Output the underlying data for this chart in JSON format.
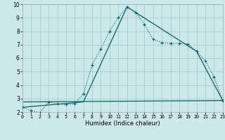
{
  "xlabel": "Humidex (Indice chaleur)",
  "background_color": "#cce8e8",
  "grid_color": "#aacccc",
  "line_color": "#006666",
  "xlim": [
    0,
    23
  ],
  "ylim": [
    2,
    10
  ],
  "xtick_vals": [
    0,
    1,
    2,
    3,
    4,
    5,
    6,
    7,
    8,
    9,
    10,
    11,
    12,
    13,
    14,
    15,
    16,
    17,
    18,
    19,
    20,
    21,
    22,
    23
  ],
  "ytick_vals": [
    2,
    3,
    4,
    5,
    6,
    7,
    8,
    9,
    10
  ],
  "series1_x": [
    0,
    1,
    2,
    3,
    4,
    5,
    6,
    7,
    8,
    9,
    10,
    11,
    12,
    13,
    14,
    15,
    16,
    17,
    18,
    19,
    20,
    21,
    22,
    23
  ],
  "series1_y": [
    2.35,
    2.1,
    1.95,
    2.75,
    2.6,
    2.55,
    2.6,
    3.35,
    5.5,
    6.7,
    8.0,
    9.0,
    9.8,
    9.4,
    8.5,
    7.4,
    7.15,
    7.1,
    7.1,
    7.05,
    6.5,
    5.8,
    4.6,
    2.85
  ],
  "series2_x": [
    0,
    7,
    12,
    20,
    23
  ],
  "series2_y": [
    2.35,
    2.75,
    9.8,
    6.5,
    2.85
  ],
  "series3_x": [
    0,
    23
  ],
  "series3_y": [
    2.75,
    2.85
  ],
  "xlabel_fontsize": 6.0,
  "tick_fontsize_x": 4.8,
  "tick_fontsize_y": 5.5
}
